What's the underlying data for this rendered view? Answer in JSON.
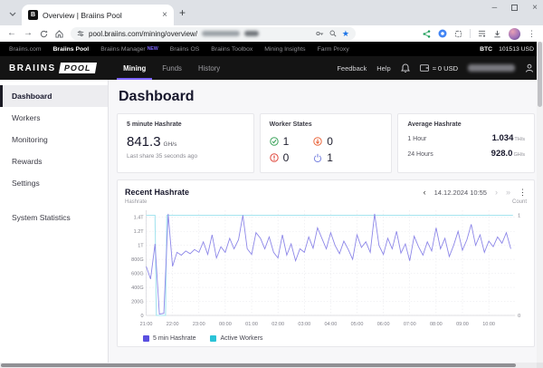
{
  "browser": {
    "tab_title": "Overview | Braiins Pool",
    "favicon_letter": "B",
    "new_tab": "+",
    "url": "pool.braiins.com/mining/overview/"
  },
  "topnav": {
    "items": [
      {
        "label": "Braiins.com"
      },
      {
        "label": "Braiins Pool"
      },
      {
        "label": "Braiins Manager",
        "badge": "NEW"
      },
      {
        "label": "Braiins OS"
      },
      {
        "label": "Braiins Toolbox"
      },
      {
        "label": "Mining Insights"
      },
      {
        "label": "Farm Proxy"
      }
    ],
    "btc_label": "BTC",
    "btc_price": "101513 USD"
  },
  "appbar": {
    "logo_primary": "BRAIINS",
    "logo_secondary": "POOL",
    "tabs": [
      {
        "label": "Mining"
      },
      {
        "label": "Funds"
      },
      {
        "label": "History"
      }
    ],
    "feedback": "Feedback",
    "help": "Help",
    "balance": "≈ 0 USD"
  },
  "sidebar": {
    "items": [
      {
        "label": "Dashboard"
      },
      {
        "label": "Workers"
      },
      {
        "label": "Monitoring"
      },
      {
        "label": "Rewards"
      },
      {
        "label": "Settings"
      },
      {
        "label": "System Statistics"
      }
    ]
  },
  "main": {
    "title": "Dashboard",
    "hashrate_card": {
      "label": "5 minute Hashrate",
      "value": "841.3",
      "unit": "GH/s",
      "sub": "Last share 35 seconds ago"
    },
    "worker_states_card": {
      "label": "Worker States",
      "ok": "1",
      "low": "0",
      "error": "0",
      "off": "1"
    },
    "average_card": {
      "label": "Average Hashrate",
      "rows": [
        {
          "label": "1 Hour",
          "value": "1.034",
          "unit": "TH/s"
        },
        {
          "label": "24 Hours",
          "value": "928.0",
          "unit": "GH/s"
        }
      ]
    }
  },
  "chart_header": {
    "title": "Recent Hashrate",
    "prev": "‹",
    "date": "14.12.2024 10:55",
    "next": "›",
    "latest": "»",
    "menu": "⋮"
  },
  "chart_data": {
    "type": "line",
    "title": "Recent Hashrate",
    "left_axis_label": "Hashrate",
    "right_axis_label": "Count",
    "grid": true,
    "legend_position": "bottom",
    "x_start_label": "21:00",
    "x_end_time": "10:55",
    "x_total_min": 840,
    "x_tick_interval_min": 60,
    "x_tick_labels": [
      "21:00",
      "22:00",
      "23:00",
      "00:00",
      "01:00",
      "02:00",
      "03:00",
      "04:00",
      "05:00",
      "06:00",
      "07:00",
      "08:00",
      "09:00",
      "10:00"
    ],
    "y_unit": "GH/s",
    "y_max": 1500,
    "y_tick_values": [
      0,
      200,
      400,
      600,
      800,
      1000,
      1200,
      1400
    ],
    "y_tick_labels": [
      "0",
      "200G",
      "400G",
      "600G",
      "800G",
      "1T",
      "1.2T",
      "1.4T"
    ],
    "right_axis_max": 1.05,
    "right_tick_labels": [
      "1",
      "0"
    ],
    "series": [
      {
        "name": "5 min Hashrate",
        "axis": "left",
        "color": "#8B85E8",
        "legend_color": "#5A50E0",
        "interval_min": 10,
        "values": [
          700,
          520,
          1020,
          20,
          30,
          1450,
          700,
          900,
          860,
          920,
          880,
          940,
          900,
          1050,
          870,
          1150,
          820,
          980,
          900,
          1100,
          950,
          1080,
          1430,
          950,
          870,
          1180,
          1100,
          950,
          1120,
          900,
          820,
          1150,
          860,
          1020,
          780,
          950,
          900,
          1120,
          960,
          1250,
          1100,
          950,
          1180,
          1000,
          880,
          1060,
          940,
          800,
          1150,
          970,
          1050,
          900,
          1450,
          1000,
          870,
          1100,
          950,
          1200,
          890,
          1020,
          780,
          1130,
          980,
          860,
          1050,
          920,
          1250,
          950,
          1100,
          840,
          1000,
          1200,
          930,
          1080,
          1300,
          1000,
          1150,
          900,
          1060,
          980,
          1120,
          1030,
          1180,
          950
        ]
      },
      {
        "name": "Active Workers",
        "axis": "right",
        "color": "#A5E4EF",
        "legend_color": "#2BC3D7",
        "points": [
          [
            0,
            1
          ],
          [
            20,
            1
          ],
          [
            23,
            0
          ],
          [
            44,
            0
          ],
          [
            47,
            1
          ],
          [
            835,
            1
          ]
        ]
      }
    ]
  }
}
